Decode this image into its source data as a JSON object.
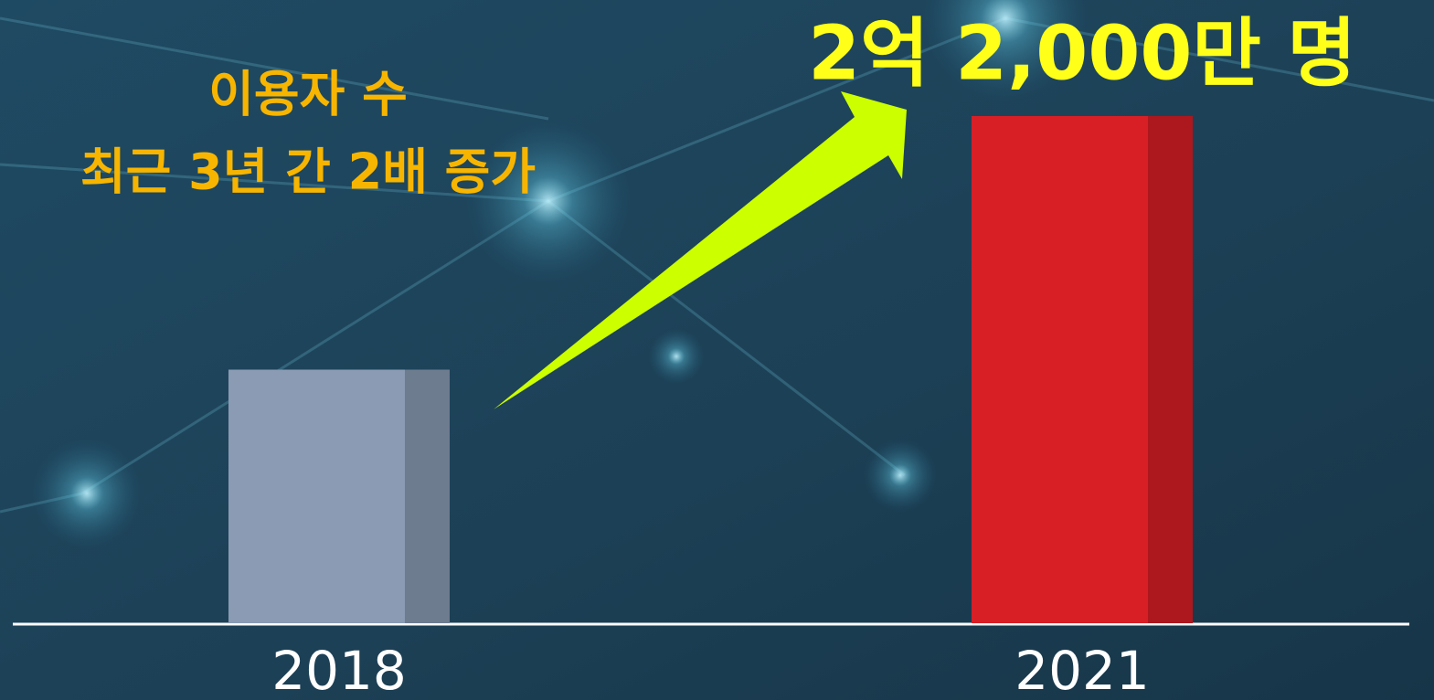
{
  "chart_data": {
    "type": "bar",
    "annotation": [
      "이용자 수",
      "최근 3년 간 2배 증가"
    ],
    "categories": [
      "2018",
      "2021"
    ],
    "series": [
      {
        "values": [
          110000000,
          220000000
        ],
        "value_labels": [
          null,
          "2억 2,000만 명"
        ],
        "colors": [
          "#8a9bb3",
          "#d81f26"
        ]
      }
    ],
    "ylim": [
      0,
      220000000
    ]
  }
}
